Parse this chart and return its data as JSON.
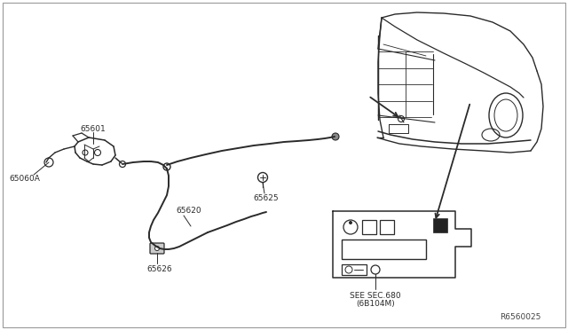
{
  "background_color": "#ffffff",
  "line_color": "#2a2a2a",
  "text_color": "#2a2a2a",
  "part_number": "R6560025",
  "fontsize": 6.5,
  "see_sec": [
    "SEE SEC.680",
    "(6B104M)"
  ]
}
